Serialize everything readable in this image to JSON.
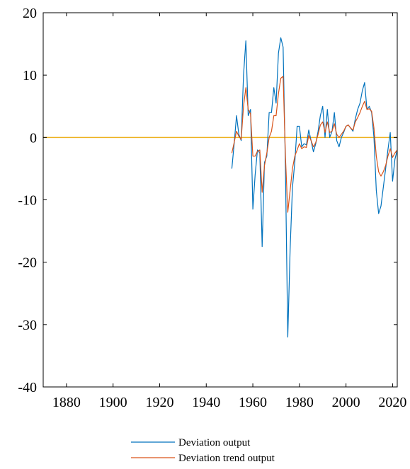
{
  "chart_data": {
    "type": "line",
    "title": "",
    "xlabel": "",
    "ylabel": "",
    "xlim": [
      1870,
      2022
    ],
    "ylim": [
      -40,
      20
    ],
    "xticks": [
      1880,
      1900,
      1920,
      1940,
      1960,
      1980,
      2000,
      2020
    ],
    "yticks": [
      20,
      10,
      0,
      -10,
      -20,
      -30,
      -40
    ],
    "grid": false,
    "legend_position": "bottom-center",
    "reference_line": {
      "y": 0,
      "color": "#EDB120"
    },
    "series": [
      {
        "name": "Deviation output",
        "color": "#0072BD",
        "x": [
          1951,
          1952,
          1953,
          1954,
          1955,
          1956,
          1957,
          1958,
          1959,
          1960,
          1961,
          1962,
          1963,
          1964,
          1965,
          1966,
          1967,
          1968,
          1969,
          1970,
          1971,
          1972,
          1973,
          1974,
          1975,
          1976,
          1977,
          1978,
          1979,
          1980,
          1981,
          1982,
          1983,
          1984,
          1985,
          1986,
          1987,
          1988,
          1989,
          1990,
          1991,
          1992,
          1993,
          1994,
          1995,
          1996,
          1997,
          1998,
          1999,
          2000,
          2001,
          2002,
          2003,
          2004,
          2005,
          2006,
          2007,
          2008,
          2009,
          2010,
          2011,
          2012,
          2013,
          2014,
          2015,
          2016,
          2017,
          2018,
          2019,
          2020,
          2021,
          2022
        ],
        "values": [
          -5,
          -1,
          3.5,
          0.5,
          -0.5,
          10,
          15.5,
          3.5,
          4.5,
          -11.5,
          -6,
          -2,
          -2.5,
          -17.5,
          -4,
          -3,
          4,
          4,
          8,
          5.5,
          13.5,
          16,
          14.5,
          -5,
          -32,
          -18,
          -8,
          -4,
          1.8,
          1.8,
          -1.5,
          -1,
          -1.2,
          1.2,
          -0.5,
          -2.3,
          -1,
          1,
          3.5,
          5,
          0,
          4.5,
          0,
          1,
          4,
          -0.5,
          -1.5,
          0,
          0.8,
          1.8,
          2,
          1.5,
          1,
          3,
          4.5,
          5.5,
          7.5,
          8.8,
          4.5,
          5,
          4,
          0,
          -8.5,
          -12.2,
          -11,
          -8,
          -5,
          -2,
          0.8,
          -7,
          -3.5,
          -2
        ]
      },
      {
        "name": "Deviation trend output",
        "color": "#D95319",
        "x": [
          1951,
          1952,
          1953,
          1954,
          1955,
          1956,
          1957,
          1958,
          1959,
          1960,
          1961,
          1962,
          1963,
          1964,
          1965,
          1966,
          1967,
          1968,
          1969,
          1970,
          1971,
          1972,
          1973,
          1974,
          1975,
          1976,
          1977,
          1978,
          1979,
          1980,
          1981,
          1982,
          1983,
          1984,
          1985,
          1986,
          1987,
          1988,
          1989,
          1990,
          1991,
          1992,
          1993,
          1994,
          1995,
          1996,
          1997,
          1998,
          1999,
          2000,
          2001,
          2002,
          2003,
          2004,
          2005,
          2006,
          2007,
          2008,
          2009,
          2010,
          2011,
          2012,
          2013,
          2014,
          2015,
          2016,
          2017,
          2018,
          2019,
          2020,
          2021,
          2022
        ],
        "values": [
          -2.5,
          -0.8,
          1,
          0.2,
          -0.3,
          5,
          8,
          4.5,
          3.8,
          -3,
          -3,
          -2.2,
          -2,
          -8.8,
          -4.5,
          -2.5,
          0,
          1,
          3.5,
          3.5,
          7,
          9.5,
          9.8,
          -3,
          -12,
          -8.5,
          -5,
          -3,
          -2,
          -1,
          -1.8,
          -1.5,
          -1.6,
          0.3,
          -0.5,
          -1.5,
          -0.8,
          0.5,
          2,
          2.5,
          0.8,
          2.5,
          0.8,
          1,
          2.2,
          0.5,
          0,
          0.5,
          1,
          1.8,
          2,
          1.5,
          1.2,
          2.5,
          3.2,
          4,
          5,
          5.8,
          4.5,
          4.6,
          4.2,
          1.5,
          -3,
          -5.5,
          -6.2,
          -5.5,
          -4.5,
          -3,
          -1.8,
          -3.2,
          -2.5,
          -2
        ]
      }
    ]
  }
}
